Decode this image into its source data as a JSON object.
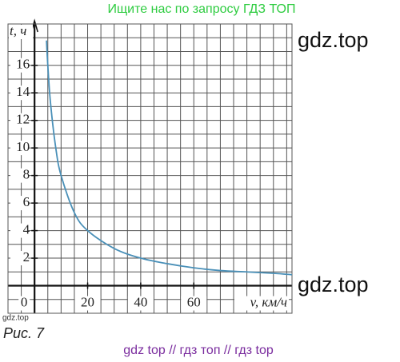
{
  "header": "Ищите нас по запросу ГДЗ ТОП",
  "watermark_top": "gdz.top",
  "watermark_bottom": "gdz.top",
  "watermark_small": "gdz.top",
  "caption": "Рис. 7",
  "footer": "gdz top  //  гдз топ  //  гдз top",
  "chart_data": {
    "type": "line",
    "y_label": "t, ч",
    "x_label": "v, км/ч",
    "origin_label": "0",
    "x": [
      4.5,
      5,
      6,
      8,
      10,
      15,
      20,
      30,
      40,
      50,
      60,
      70,
      80,
      90,
      97
    ],
    "values": [
      17.8,
      16,
      13.3,
      10,
      8,
      5.3,
      4,
      2.7,
      2,
      1.6,
      1.3,
      1.1,
      1,
      0.9,
      0.8
    ],
    "color": "#4a90b8",
    "xlim": [
      -10,
      97
    ],
    "ylim": [
      -2,
      19
    ],
    "xticks": [
      20,
      40,
      60
    ],
    "yticks": [
      2,
      4,
      6,
      8,
      10,
      12,
      14,
      16
    ],
    "xgrid": [
      -10,
      -5,
      0,
      5,
      10,
      15,
      20,
      25,
      30,
      35,
      40,
      45,
      50,
      55,
      60,
      65,
      70,
      75,
      80,
      85,
      90,
      95
    ],
    "ygrid": [
      -2,
      -1,
      0,
      1,
      2,
      3,
      4,
      5,
      6,
      7,
      8,
      9,
      10,
      11,
      12,
      13,
      14,
      15,
      16,
      17,
      18,
      19
    ],
    "grid": true
  }
}
